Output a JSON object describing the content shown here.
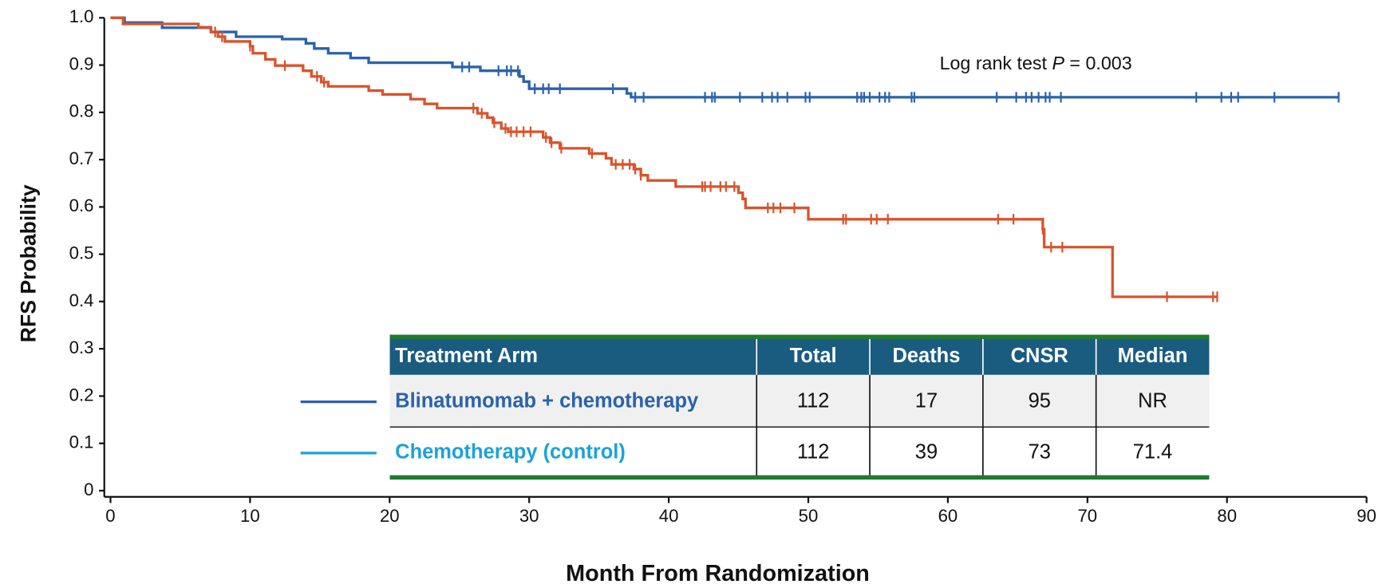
{
  "chart_data": {
    "type": "kaplan-meier",
    "xlabel": "Month From Randomization",
    "ylabel": "RFS Probability",
    "annotation": [
      "Log rank test ",
      "P",
      " = 0.003"
    ],
    "xlim": [
      0,
      90
    ],
    "ylim": [
      0,
      1
    ],
    "xticks": [
      0,
      10,
      20,
      30,
      40,
      50,
      60,
      70,
      80,
      90
    ],
    "yticks": [
      0.0,
      0.1,
      0.2,
      {
        "value": 0.3,
        "label": "0.3"
      },
      0.4,
      0.5,
      0.6,
      0.7,
      0.8,
      0.9,
      {
        "value": 1.0,
        "label": "1.0"
      }
    ],
    "series": [
      {
        "name": "Blinatumomab + chemotherapy",
        "color": "#2a62ad",
        "legend_color": "#2a62ad",
        "x": [
          0,
          1,
          3.7,
          7.2,
          9,
          12.3,
          14,
          14.6,
          15.6,
          17.2,
          18.5,
          24.5,
          26.5,
          29.3,
          29.6,
          30,
          37,
          37.3,
          88
        ],
        "values": [
          1.0,
          0.99,
          0.979,
          0.97,
          0.96,
          0.955,
          0.946,
          0.935,
          0.925,
          0.915,
          0.905,
          0.896,
          0.888,
          0.876,
          0.865,
          0.85,
          0.84,
          0.832,
          0.832
        ],
        "censor_x": [
          25.2,
          25.7,
          27.8,
          28.4,
          28.7,
          29.2,
          30.4,
          31.0,
          31.4,
          32.2,
          36.0,
          37.6,
          38.2,
          42.6,
          43.1,
          43.3,
          45.1,
          46.7,
          47.4,
          47.8,
          48.5,
          49.8,
          50.1,
          53.5,
          53.8,
          54,
          54.4,
          55.1,
          55.5,
          55.8,
          57.4,
          57.6,
          63.5,
          64.9,
          65.6,
          66,
          66.5,
          67,
          67.3,
          68.1,
          77.8,
          79.6,
          80.3,
          80.8,
          83.4,
          88
        ]
      },
      {
        "name": "Chemotherapy (control)",
        "color": "#d9532b",
        "legend_color": "#1ca2d8",
        "x": [
          0,
          0.9,
          6.3,
          7.2,
          7.7,
          8.2,
          10,
          10.2,
          11.1,
          11.8,
          13.8,
          14.4,
          15.1,
          15.6,
          18.5,
          19.5,
          21.5,
          22.5,
          23.4,
          26.3,
          27,
          27.4,
          28,
          28.5,
          31,
          31.5,
          32.2,
          34.3,
          35.5,
          35.9,
          37.5,
          38,
          38.5,
          40.5,
          45,
          45.3,
          45.5,
          50,
          66.8,
          66.9,
          71.8,
          79.3
        ],
        "values": [
          1.0,
          0.987,
          0.98,
          0.97,
          0.96,
          0.95,
          0.94,
          0.925,
          0.912,
          0.899,
          0.888,
          0.876,
          0.864,
          0.855,
          0.846,
          0.838,
          0.828,
          0.818,
          0.809,
          0.798,
          0.789,
          0.778,
          0.766,
          0.759,
          0.747,
          0.736,
          0.724,
          0.713,
          0.703,
          0.69,
          0.68,
          0.667,
          0.656,
          0.643,
          0.63,
          0.617,
          0.598,
          0.574,
          0.553,
          0.515,
          0.41,
          0.41
        ],
        "censor_x": [
          7.5,
          8,
          10,
          12.5,
          14.8,
          15.3,
          26,
          26.6,
          27.5,
          28.3,
          28.7,
          29.1,
          29.6,
          30.1,
          31.2,
          31.6,
          32.3,
          34.5,
          36.2,
          36.7,
          37.2,
          37.6,
          38,
          42.4,
          42.6,
          43,
          43.7,
          44.1,
          44.7,
          47.1,
          47.5,
          48,
          49,
          52.5,
          52.7,
          54.5,
          54.9,
          55.7,
          63.6,
          64.7,
          66.8,
          67.4,
          68.2,
          75.7,
          79,
          79.3
        ]
      }
    ],
    "table": {
      "columns": [
        "Treatment Arm",
        "Total",
        "Deaths",
        "CNSR",
        "Median"
      ],
      "rows": [
        [
          "Blinatumomab + chemotherapy",
          "112",
          "17",
          "95",
          "NR"
        ],
        [
          "Chemotherapy (control)",
          "112",
          "39",
          "73",
          "71.4"
        ]
      ]
    }
  }
}
